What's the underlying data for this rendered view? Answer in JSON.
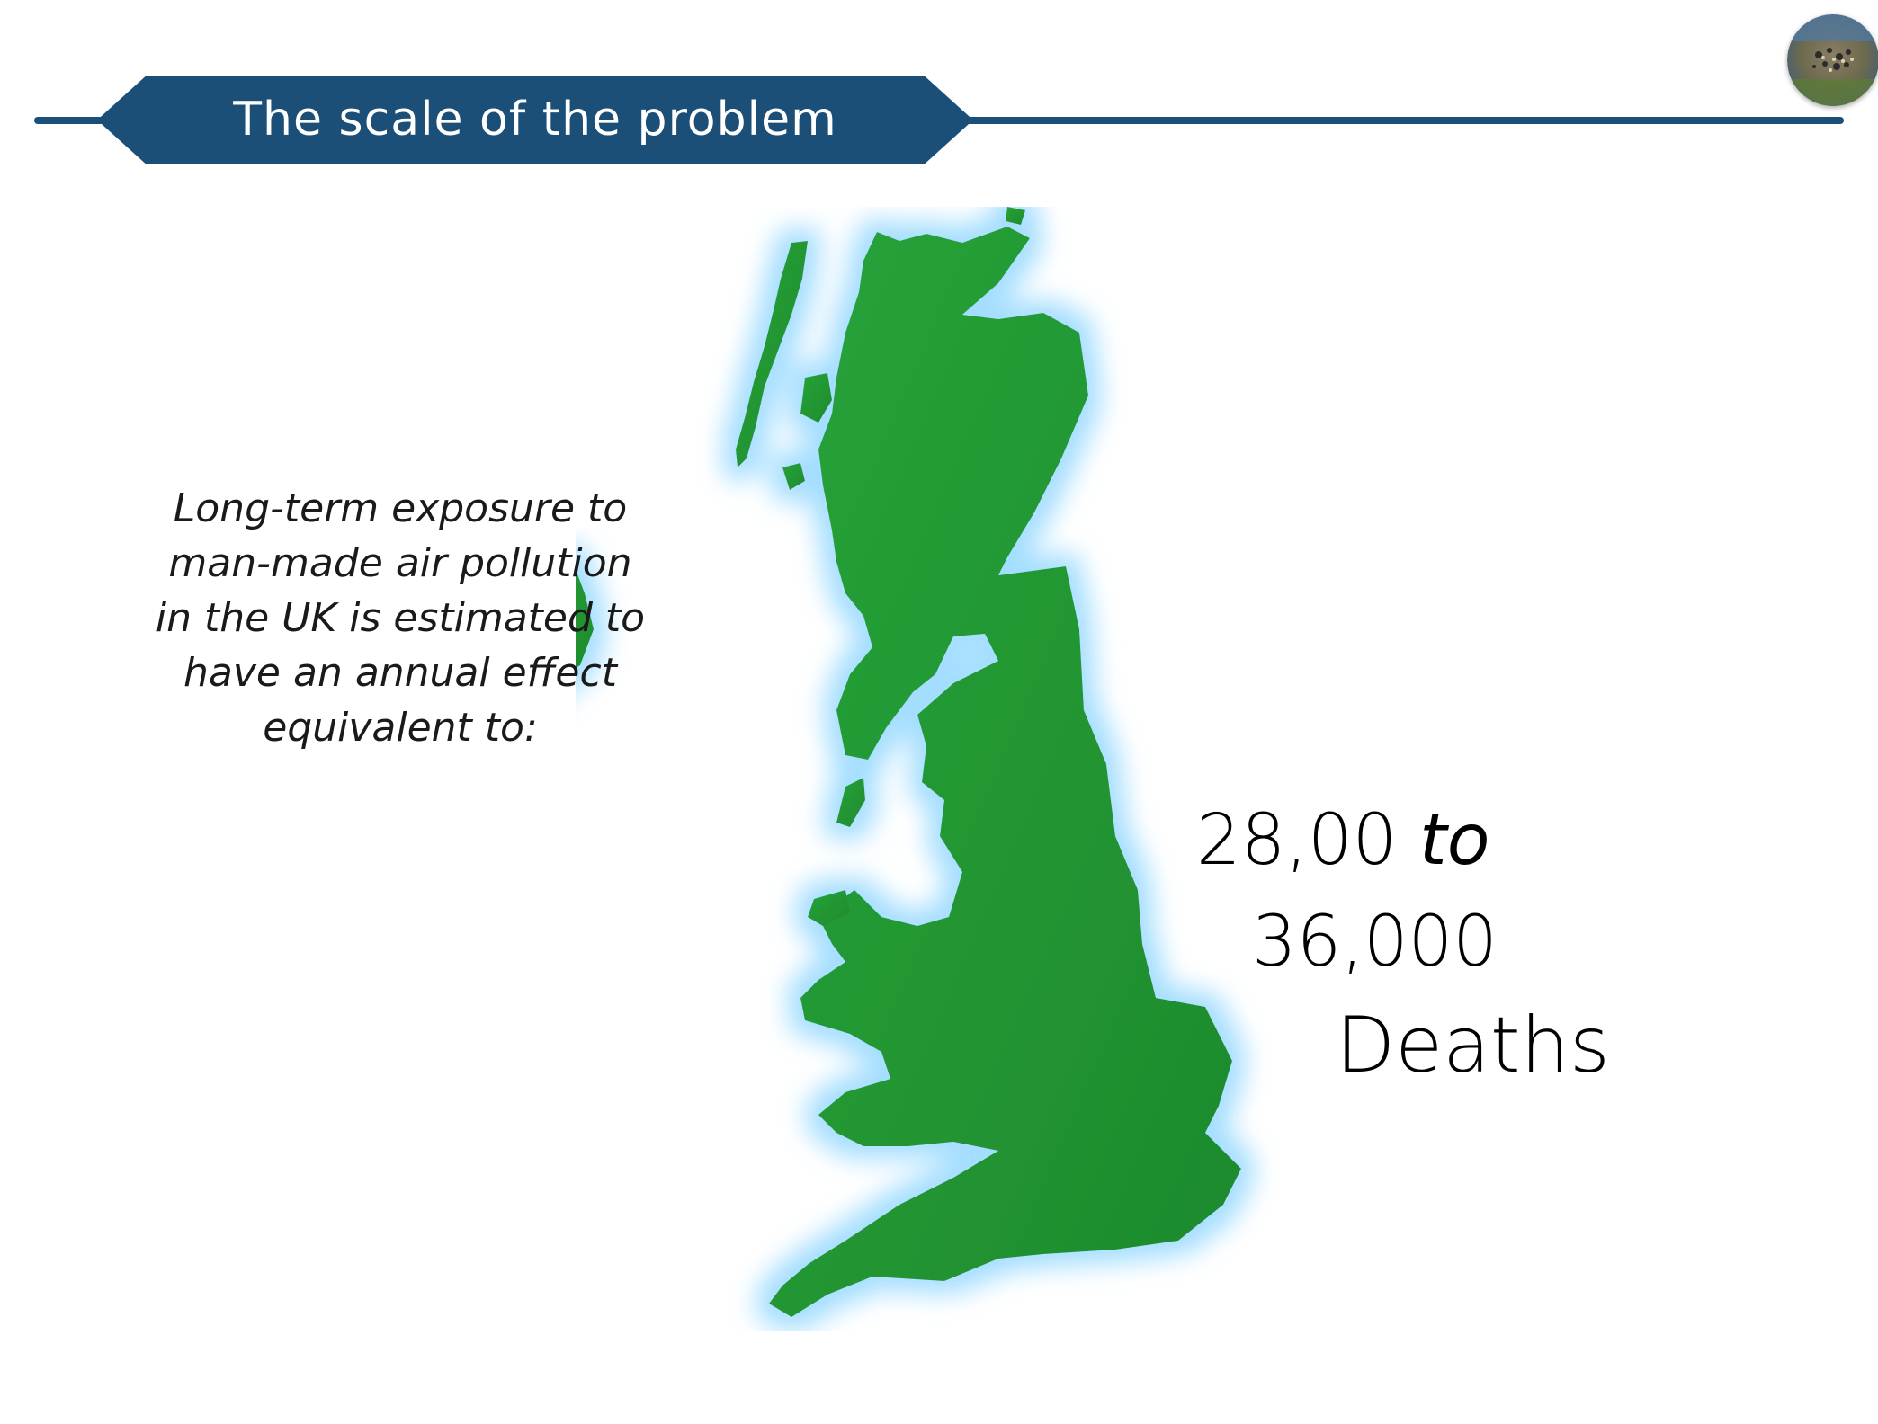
{
  "header": {
    "title": "The scale of the problem"
  },
  "logo": {
    "icon": "air-pollution-photo-icon"
  },
  "map": {
    "icon": "uk-map-icon",
    "land_color": "#1f8f2e",
    "glow_color": "#9fdcff"
  },
  "content": {
    "intro_lines": [
      "Long-term exposure to",
      "man-made air pollution",
      "in the UK is estimated to",
      "have an annual effect",
      "equivalent to:"
    ],
    "stat_from": "28,00",
    "stat_connector": "to",
    "stat_to": "36,000",
    "stat_unit": "Deaths"
  },
  "colors": {
    "banner": "#1b4f78",
    "banner_text": "#ffffff"
  }
}
